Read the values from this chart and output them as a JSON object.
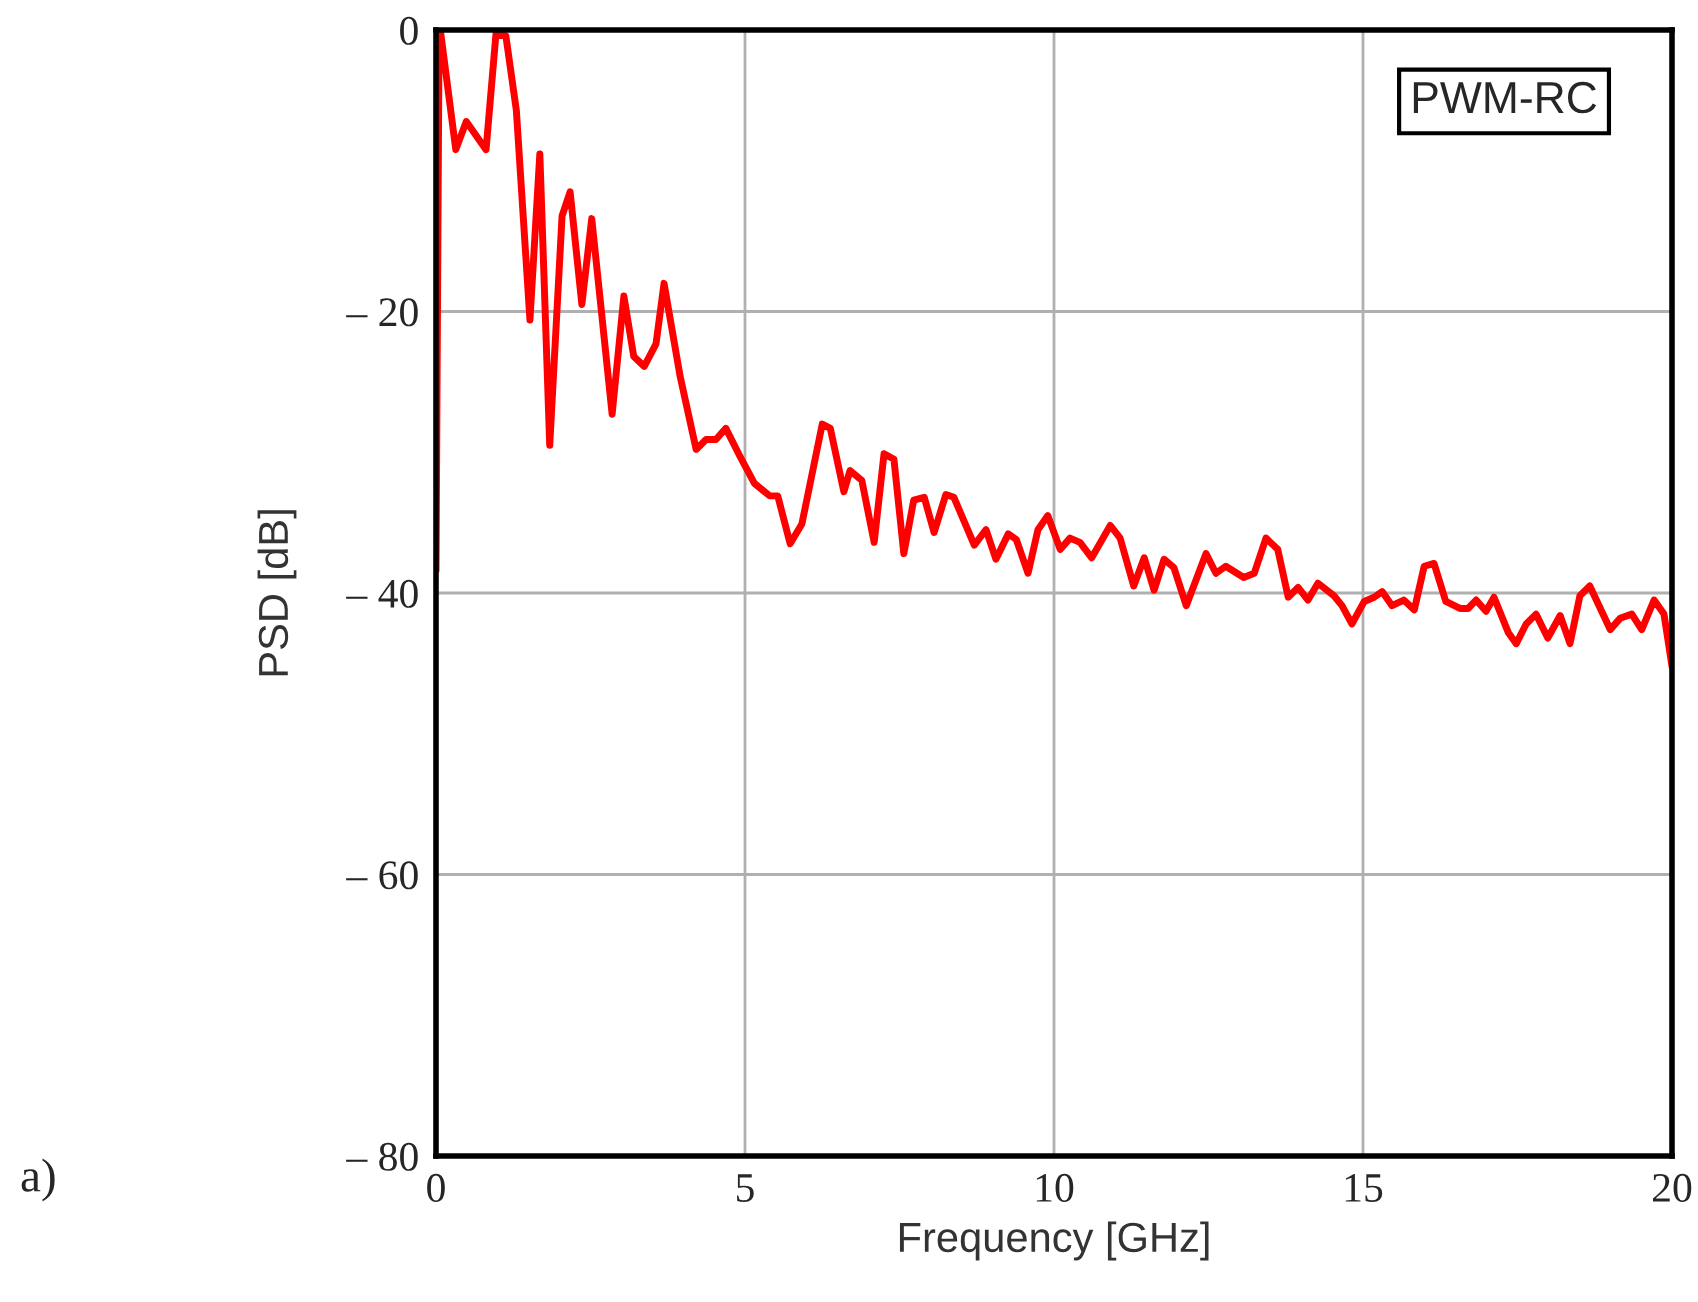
{
  "chart_data": {
    "type": "line",
    "xlabel": "Frequency [GHz]",
    "ylabel": "PSD [dB]",
    "annotations": [
      "PWM-RC",
      "a)"
    ],
    "xlim": [
      0,
      20
    ],
    "xticks": [
      0,
      5,
      10,
      15,
      20
    ],
    "ylim": [
      -80,
      0
    ],
    "yticks": [
      {
        "value": -80,
        "label": "– 80"
      },
      {
        "value": -60,
        "label": "– 60"
      },
      {
        "value": -40,
        "label": "– 40"
      },
      {
        "value": -20,
        "label": "– 20"
      },
      0
    ],
    "grid": true,
    "marker": "none",
    "line_style": "solid",
    "series": [
      {
        "color": "#ff0000",
        "x": [
          0,
          0.05,
          0.07,
          0.32,
          0.49,
          0.81,
          0.97,
          1.13,
          1.3,
          1.52,
          1.68,
          1.84,
          2.04,
          2.17,
          2.36,
          2.52,
          2.85,
          3.04,
          3.2,
          3.37,
          3.56,
          3.69,
          3.95,
          4.21,
          4.37,
          4.53,
          4.69,
          4.92,
          5.15,
          5.4,
          5.53,
          5.73,
          5.92,
          6.25,
          6.38,
          6.6,
          6.7,
          6.89,
          7.09,
          7.25,
          7.41,
          7.57,
          7.73,
          7.9,
          8.06,
          8.25,
          8.38,
          8.71,
          8.9,
          9.06,
          9.26,
          9.39,
          9.58,
          9.74,
          9.9,
          10.1,
          10.26,
          10.42,
          10.61,
          10.91,
          11.07,
          11.29,
          11.46,
          11.62,
          11.78,
          11.94,
          12.14,
          12.46,
          12.62,
          12.78,
          13.07,
          13.24,
          13.43,
          13.62,
          13.79,
          13.95,
          14.11,
          14.27,
          14.53,
          14.66,
          14.82,
          15.02,
          15.18,
          15.31,
          15.47,
          15.66,
          15.83,
          15.99,
          16.15,
          16.34,
          16.57,
          16.7,
          16.83,
          16.99,
          17.12,
          17.35,
          17.48,
          17.64,
          17.8,
          17.99,
          18.19,
          18.35,
          18.51,
          18.67,
          19.0,
          19.16,
          19.35,
          19.51,
          19.71,
          19.87,
          20.0
        ],
        "values": [
          -38.4,
          0,
          0,
          -8.5,
          -6.5,
          -8.5,
          -0.3,
          -0.4,
          -5.7,
          -20.6,
          -8.8,
          -29.5,
          -13.2,
          -11.5,
          -19.5,
          -13.4,
          -27.3,
          -18.9,
          -23.2,
          -23.9,
          -22.3,
          -18.0,
          -24.6,
          -29.8,
          -29.1,
          -29.1,
          -28.3,
          -30.3,
          -32.2,
          -33.1,
          -33.1,
          -36.5,
          -35.1,
          -28.0,
          -28.3,
          -32.8,
          -31.3,
          -32.0,
          -36.4,
          -30.1,
          -30.5,
          -37.2,
          -33.4,
          -33.2,
          -35.7,
          -33.0,
          -33.2,
          -36.6,
          -35.5,
          -37.6,
          -35.8,
          -36.2,
          -38.6,
          -35.5,
          -34.5,
          -36.9,
          -36.1,
          -36.4,
          -37.5,
          -35.2,
          -36.1,
          -39.5,
          -37.5,
          -39.8,
          -37.6,
          -38.2,
          -40.9,
          -37.2,
          -38.6,
          -38.1,
          -38.9,
          -38.6,
          -36.1,
          -36.9,
          -40.3,
          -39.6,
          -40.5,
          -39.3,
          -40.2,
          -40.9,
          -42.2,
          -40.6,
          -40.3,
          -39.9,
          -40.9,
          -40.5,
          -41.2,
          -38.1,
          -37.9,
          -40.6,
          -41.1,
          -41.1,
          -40.5,
          -41.3,
          -40.3,
          -42.8,
          -43.6,
          -42.2,
          -41.5,
          -43.2,
          -41.6,
          -43.6,
          -40.2,
          -39.5,
          -42.6,
          -41.8,
          -41.5,
          -42.6,
          -40.5,
          -41.5,
          -45.2
        ]
      }
    ]
  }
}
